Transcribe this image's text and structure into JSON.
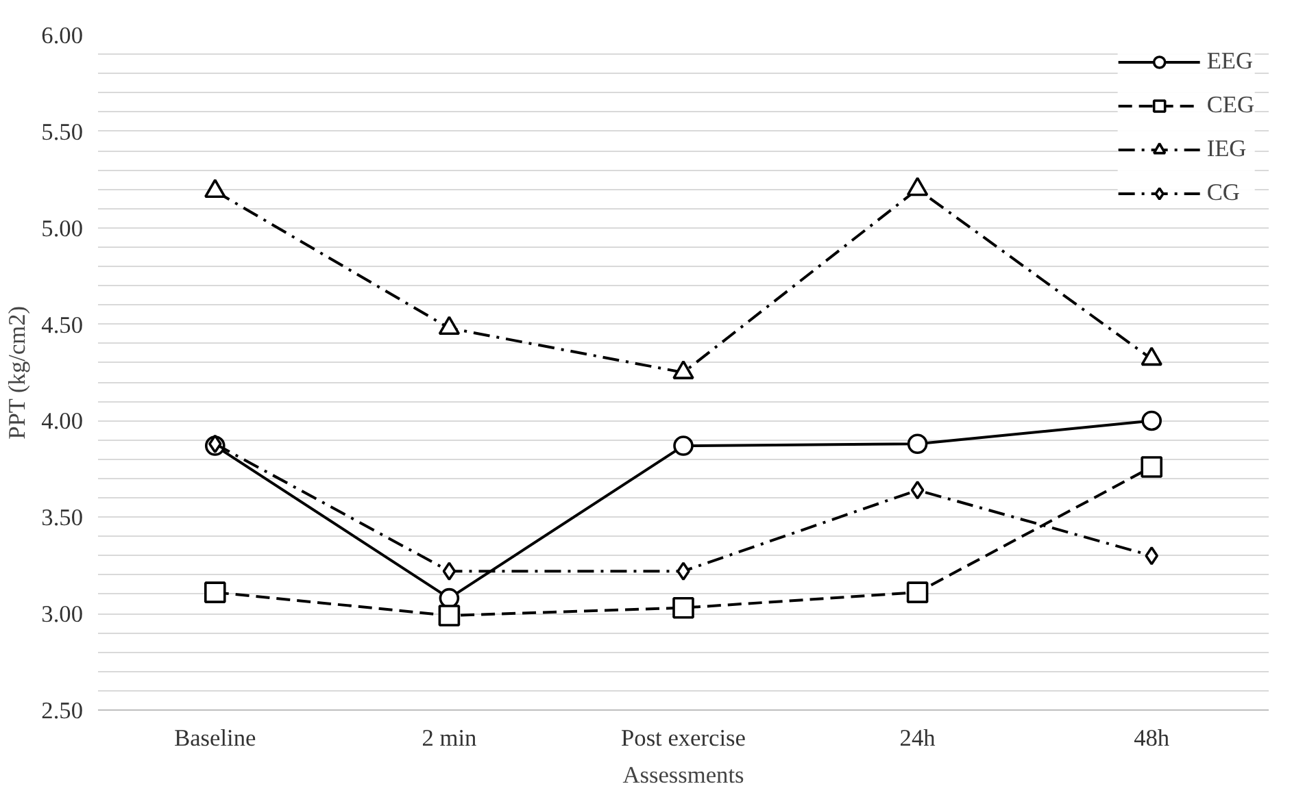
{
  "chart_data": {
    "type": "line",
    "xlabel": "Assessments",
    "ylabel": "PPT (kg/cm2)",
    "categories": [
      "Baseline",
      "2 min",
      "Post exercise",
      "24h",
      "48h"
    ],
    "series": [
      {
        "name": "EEG",
        "color": "#000000",
        "marker": "circle",
        "line_style": "solid",
        "values": [
          3.87,
          3.08,
          3.87,
          3.88,
          4.0
        ]
      },
      {
        "name": "CEG",
        "color": "#000000",
        "marker": "square",
        "line_style": "dashed",
        "values": [
          3.11,
          2.99,
          3.03,
          3.11,
          3.76
        ]
      },
      {
        "name": "IEG",
        "color": "#000000",
        "marker": "triangle",
        "line_style": "dashdot",
        "values": [
          5.19,
          4.48,
          4.25,
          5.2,
          4.32
        ]
      },
      {
        "name": "CG",
        "color": "#000000",
        "marker": "diamond",
        "line_style": "dashdot",
        "values": [
          3.88,
          3.22,
          3.22,
          3.64,
          3.3
        ]
      }
    ],
    "ylim": [
      2.5,
      6.0
    ],
    "yticks": [
      {
        "value": 2.5,
        "label": "2.50"
      },
      {
        "value": 2.6,
        "label": null
      },
      {
        "value": 2.7,
        "label": null
      },
      {
        "value": 2.8,
        "label": null
      },
      {
        "value": 2.9,
        "label": null
      },
      {
        "value": 3.0,
        "label": "3.00"
      },
      {
        "value": 3.1,
        "label": null
      },
      {
        "value": 3.2,
        "label": null
      },
      {
        "value": 3.3,
        "label": null
      },
      {
        "value": 3.4,
        "label": null
      },
      {
        "value": 3.5,
        "label": "3.50"
      },
      {
        "value": 3.6,
        "label": null
      },
      {
        "value": 3.7,
        "label": null
      },
      {
        "value": 3.8,
        "label": null
      },
      {
        "value": 3.9,
        "label": null
      },
      {
        "value": 4.0,
        "label": "4.00"
      },
      {
        "value": 4.1,
        "label": null
      },
      {
        "value": 4.2,
        "label": null
      },
      {
        "value": 4.3,
        "label": null
      },
      {
        "value": 4.4,
        "label": null
      },
      {
        "value": 4.5,
        "label": "4.50"
      },
      {
        "value": 4.6,
        "label": null
      },
      {
        "value": 4.7,
        "label": null
      },
      {
        "value": 4.8,
        "label": null
      },
      {
        "value": 4.9,
        "label": null
      },
      {
        "value": 5.0,
        "label": "5.00"
      },
      {
        "value": 5.1,
        "label": null
      },
      {
        "value": 5.2,
        "label": null
      },
      {
        "value": 5.3,
        "label": null
      },
      {
        "value": 5.4,
        "label": null
      },
      {
        "value": 5.5,
        "label": "5.50"
      },
      {
        "value": 5.6,
        "label": null
      },
      {
        "value": 5.7,
        "label": null
      },
      {
        "value": 5.8,
        "label": null
      },
      {
        "value": 5.9,
        "label": null
      },
      {
        "value": 6.0,
        "label": "6.00"
      }
    ],
    "grid": "y",
    "legend": "top right"
  }
}
